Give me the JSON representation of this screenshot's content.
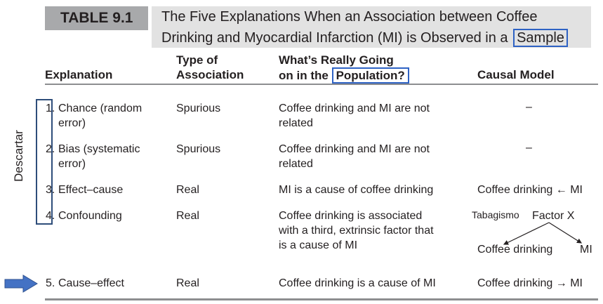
{
  "table_label": "TABLE 9.1",
  "title_line1": "The Five Explanations When an Association between Coffee",
  "title_line2_prefix": "Drinking and Myocardial Infarction (MI) is Observed in a",
  "title_line2_highlight": "Sample",
  "headers": {
    "explanation": "Explanation",
    "type_line1": "Type of",
    "type_line2": "Association",
    "going_line1": "What’s Really Going",
    "going_line2_prefix": "on in the",
    "going_line2_highlight": "Population?",
    "causal": "Causal Model"
  },
  "side_annotation": "Descartar",
  "rows": [
    {
      "explanation_num": "1.",
      "explanation_l1": "Chance (random",
      "explanation_l2": "error)",
      "type": "Spurious",
      "going_l1": "Coffee drinking and MI are not",
      "going_l2": "related",
      "causal": "–"
    },
    {
      "explanation_num": "2.",
      "explanation_l1": "Bias (systematic",
      "explanation_l2": "error)",
      "type": "Spurious",
      "going_l1": "Coffee drinking and MI are not",
      "going_l2": "related",
      "causal": "–"
    },
    {
      "explanation_num": "3.",
      "explanation_l1": "Effect–cause",
      "type": "Real",
      "going_l1": "MI is a cause of coffee drinking",
      "causal": "Coffee drinking ← MI"
    },
    {
      "explanation_num": "4.",
      "explanation_l1": "Confounding",
      "type": "Real",
      "going_l1": "Coffee drinking is associated",
      "going_l2": "with a third, extrinsic factor that",
      "going_l3": "is a cause of MI",
      "causal_annotation": "Tabagismo",
      "causal_factor": "Factor X",
      "causal_left": "Coffee drinking",
      "causal_right": "MI"
    },
    {
      "explanation_num": "5.",
      "explanation_l1": "Cause–effect",
      "type": "Real",
      "going_l1": "Coffee drinking is a cause of MI",
      "causal": "Coffee drinking → MI"
    }
  ],
  "colors": {
    "title_band": "#e2e2e2",
    "table_tag": "#a8a9ab",
    "highlight_box": "#2e62c4",
    "bracket": "#2e4d7a",
    "arrow": "#4472c4",
    "rule": "#8d8e90"
  },
  "icons": {
    "row_pointer": "right-arrow-icon"
  }
}
